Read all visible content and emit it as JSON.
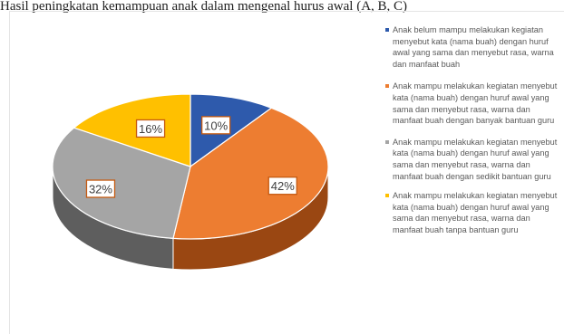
{
  "page": {
    "top_text": "Hasil peningkatan kemampuan anak dalam mengenal hurus awal (A, B, C)"
  },
  "chart_data": {
    "type": "pie",
    "title": "",
    "style": "3d",
    "labels_format": "percent",
    "legend_position": "right",
    "slices": [
      {
        "label": "Anak belum mampu melakukan kegiatan menyebut kata (nama buah) dengan huruf awal yang sama dan menyebut rasa, warna dan manfaat buah",
        "value": 10,
        "value_label": "10%",
        "color": "#2E5AAC",
        "side_color": "#1d3d78"
      },
      {
        "label": "Anak mampu melakukan kegiatan menyebut kata (nama buah) dengan huruf awal yang sama dan menyebut rasa, warna dan manfaat buah dengan banyak bantuan guru",
        "value": 42,
        "value_label": "42%",
        "color": "#ED7D31",
        "side_color": "#9a4712"
      },
      {
        "label": "Anak mampu melakukan kegiatan menyebut kata (nama buah) dengan huruf awal yang sama dan menyebut rasa, warna dan manfaat buah dengan sedikit bantuan guru",
        "value": 32,
        "value_label": "32%",
        "color": "#A5A5A5",
        "side_color": "#5e5e5e"
      },
      {
        "label": "Anak mampu melakukan kegiatan menyebut kata (nama buah) dengan huruf awal yang sama dan menyebut rasa, warna dan manfaat buah tanpa bantuan guru",
        "value": 16,
        "value_label": "16%",
        "color": "#FFC000",
        "side_color": "#b38600"
      }
    ]
  }
}
